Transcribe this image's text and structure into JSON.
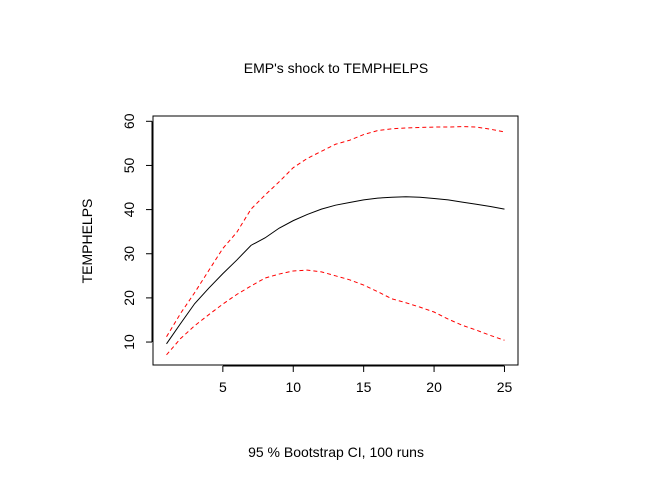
{
  "chart_data": {
    "type": "line",
    "title": "EMP's shock to TEMPHELPS",
    "xlabel": "95 % Bootstrap CI,  100 runs",
    "ylabel": "TEMPHELPS",
    "xlim": [
      0.04,
      25.96
    ],
    "ylim": [
      4.8,
      61.2
    ],
    "x_ticks": [
      5,
      10,
      15,
      20,
      25
    ],
    "y_ticks": [
      10,
      20,
      30,
      40,
      50,
      60
    ],
    "grid": false,
    "legend": "none",
    "x": [
      1,
      2,
      3,
      4,
      5,
      6,
      7,
      8,
      9,
      10,
      11,
      12,
      13,
      14,
      15,
      16,
      17,
      18,
      19,
      20,
      21,
      22,
      23,
      24,
      25
    ],
    "series": [
      {
        "role": "estimate",
        "color": "#000000",
        "dash": "solid",
        "values": [
          9.6,
          14.2,
          18.7,
          22.2,
          25.5,
          28.6,
          31.9,
          33.6,
          35.8,
          37.5,
          38.9,
          40.1,
          41.0,
          41.6,
          42.2,
          42.6,
          42.8,
          42.9,
          42.8,
          42.5,
          42.2,
          41.7,
          41.2,
          40.7,
          40.1
        ]
      },
      {
        "role": "upper",
        "color": "#ff0000",
        "dash": "dashed",
        "values": [
          11.2,
          16.5,
          21.2,
          26.2,
          31.2,
          34.9,
          40.1,
          43.3,
          46.3,
          49.5,
          51.6,
          53.2,
          54.8,
          55.7,
          57.0,
          57.9,
          58.3,
          58.5,
          58.6,
          58.7,
          58.7,
          58.8,
          58.7,
          58.2,
          57.6
        ]
      },
      {
        "role": "lower",
        "color": "#ff0000",
        "dash": "dashed",
        "values": [
          7.1,
          10.8,
          13.7,
          16.2,
          18.6,
          20.8,
          22.7,
          24.5,
          25.4,
          26.1,
          26.3,
          25.9,
          25.0,
          24.1,
          22.9,
          21.4,
          19.8,
          18.9,
          17.9,
          16.8,
          15.2,
          13.8,
          12.7,
          11.5,
          10.4
        ]
      }
    ]
  }
}
